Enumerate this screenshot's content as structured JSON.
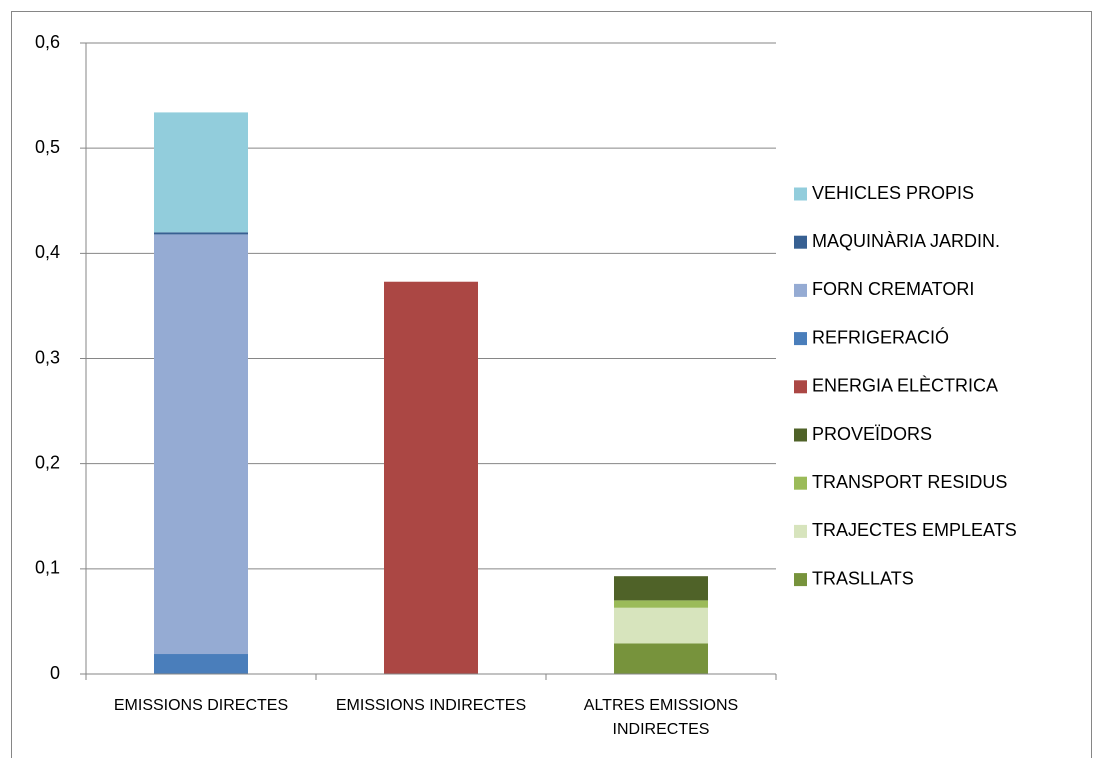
{
  "chart_data": {
    "type": "stacked_bar",
    "categories": [
      "EMISSIONS DIRECTES",
      "EMISSIONS INDIRECTES",
      "ALTRES EMISSIONS INDIRECTES"
    ],
    "series": [
      {
        "name": "TRASLLATS",
        "color": "#77933c",
        "values": [
          0,
          0,
          0.029
        ]
      },
      {
        "name": "TRAJECTES EMPLEATS",
        "color": "#d7e4bd",
        "values": [
          0,
          0,
          0.034
        ]
      },
      {
        "name": "TRANSPORT RESIDUS",
        "color": "#9bbb59",
        "values": [
          0,
          0,
          0.007
        ]
      },
      {
        "name": "PROVEÏDORS",
        "color": "#4f6228",
        "values": [
          0,
          0,
          0.023
        ]
      },
      {
        "name": "ENERGIA ELÈCTRICA",
        "color": "#ab4744",
        "values": [
          0,
          0.373,
          0
        ]
      },
      {
        "name": "REFRIGERACIÓ",
        "color": "#4a7ebb",
        "values": [
          0.019,
          0,
          0
        ]
      },
      {
        "name": "FORN CREMATORI",
        "color": "#95abd3",
        "values": [
          0.399,
          0,
          0
        ]
      },
      {
        "name": "MAQUINÀRIA JARDIN.",
        "color": "#376092",
        "values": [
          0.002,
          0,
          0
        ]
      },
      {
        "name": "VEHICLES PROPIS",
        "color": "#92cddc",
        "values": [
          0.114,
          0,
          0
        ]
      }
    ],
    "ylim": [
      0,
      0.6
    ],
    "yticks": [
      0,
      {
        "value": 0.1,
        "label": "0,1"
      },
      {
        "value": 0.2,
        "label": "0,2"
      },
      {
        "value": 0.3,
        "label": "0,3"
      },
      {
        "value": 0.4,
        "label": "0,4"
      },
      {
        "value": 0.5,
        "label": "0,5"
      },
      {
        "value": 0.6,
        "label": "0,6"
      }
    ],
    "grid": true,
    "legend": "right"
  }
}
